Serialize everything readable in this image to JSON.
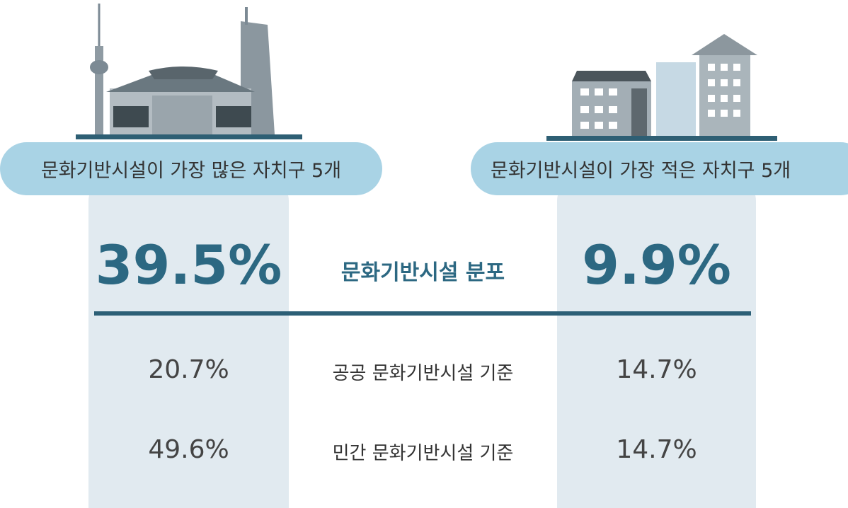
{
  "left": {
    "header": "문화기반시설이 가장 많은 자치구 5개"
  },
  "right": {
    "header": "문화기반시설이 가장 적은 자치구 5개"
  },
  "rows": [
    {
      "label": "문화기반시설 분포",
      "left": "39.5%",
      "right": "9.9%"
    },
    {
      "label": "공공 문화기반시설 기준",
      "left": "20.7%",
      "right": "14.7%"
    },
    {
      "label": "민간 문화기반시설 기준",
      "left": "49.6%",
      "right": "14.7%"
    }
  ]
}
